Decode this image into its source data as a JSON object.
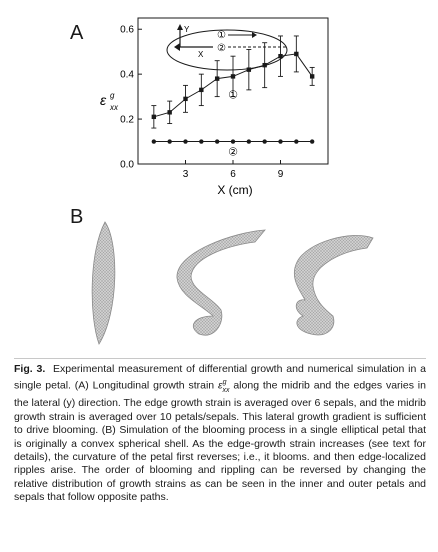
{
  "panels": {
    "a_label": "A",
    "b_label": "B"
  },
  "chart_data": {
    "type": "line",
    "xlabel": "X (cm)",
    "ylabel_main": "ε",
    "ylabel_sup": "g",
    "ylabel_sub": "xx",
    "xlim": [
      0,
      12
    ],
    "ylim": [
      0,
      0.65
    ],
    "x_ticks": [
      3,
      6,
      9
    ],
    "x_tick_labels": [
      "3",
      "6",
      "9"
    ],
    "y_ticks": [
      0.0,
      0.2,
      0.4,
      0.6
    ],
    "y_tick_labels": [
      "0.0",
      "0.2",
      "0.4",
      "0.6"
    ],
    "series": [
      {
        "marker": "square",
        "annotation": "①",
        "x": [
          1,
          2,
          3,
          4,
          5,
          6,
          7,
          8,
          9,
          10,
          11
        ],
        "y": [
          0.21,
          0.23,
          0.29,
          0.33,
          0.38,
          0.39,
          0.42,
          0.44,
          0.48,
          0.49,
          0.39
        ],
        "err": [
          0.05,
          0.05,
          0.06,
          0.07,
          0.08,
          0.09,
          0.09,
          0.1,
          0.09,
          0.08,
          0.04
        ]
      },
      {
        "marker": "circle",
        "annotation": "②",
        "x": [
          1,
          2,
          3,
          4,
          5,
          6,
          7,
          8,
          9,
          10,
          11
        ],
        "y": [
          0.1,
          0.1,
          0.1,
          0.1,
          0.1,
          0.1,
          0.1,
          0.1,
          0.1,
          0.1,
          0.1
        ]
      }
    ],
    "inset": {
      "y_label": "Y",
      "x_label": "X",
      "mark_1": "①",
      "mark_2": "②"
    }
  },
  "caption": {
    "fig_no": "Fig. 3.",
    "text_1": "Experimental measurement of differential growth and numerical simulation in a single petal. (A) Longitudinal growth strain ",
    "symbol_main": "ε",
    "symbol_sup": "g",
    "symbol_sub": "xx",
    "text_2": " along the midrib and the edges varies in the lateral (y) direction. The edge growth strain is averaged over 6 sepals, and the midrib growth strain is averaged over 10 petals/sepals. This lateral growth gradient is sufficient to drive blooming. (B) Simulation of the blooming process in a single elliptical petal that is originally a convex spherical shell. As the edge-growth strain increases (see text for details), the curvature of the petal first reverses; i.e., it blooms. and then edge-localized ripples arise. The order of blooming and rippling can be reversed by changing the relative distribution of growth strains as can be seen in the inner and outer petals and sepals that follow opposite paths."
  },
  "colors": {
    "ink": "#1a1a1a",
    "petal_fill": "#c9c9c9",
    "petal_edge": "#8a8a8a",
    "rule": "#c8c8c8"
  }
}
